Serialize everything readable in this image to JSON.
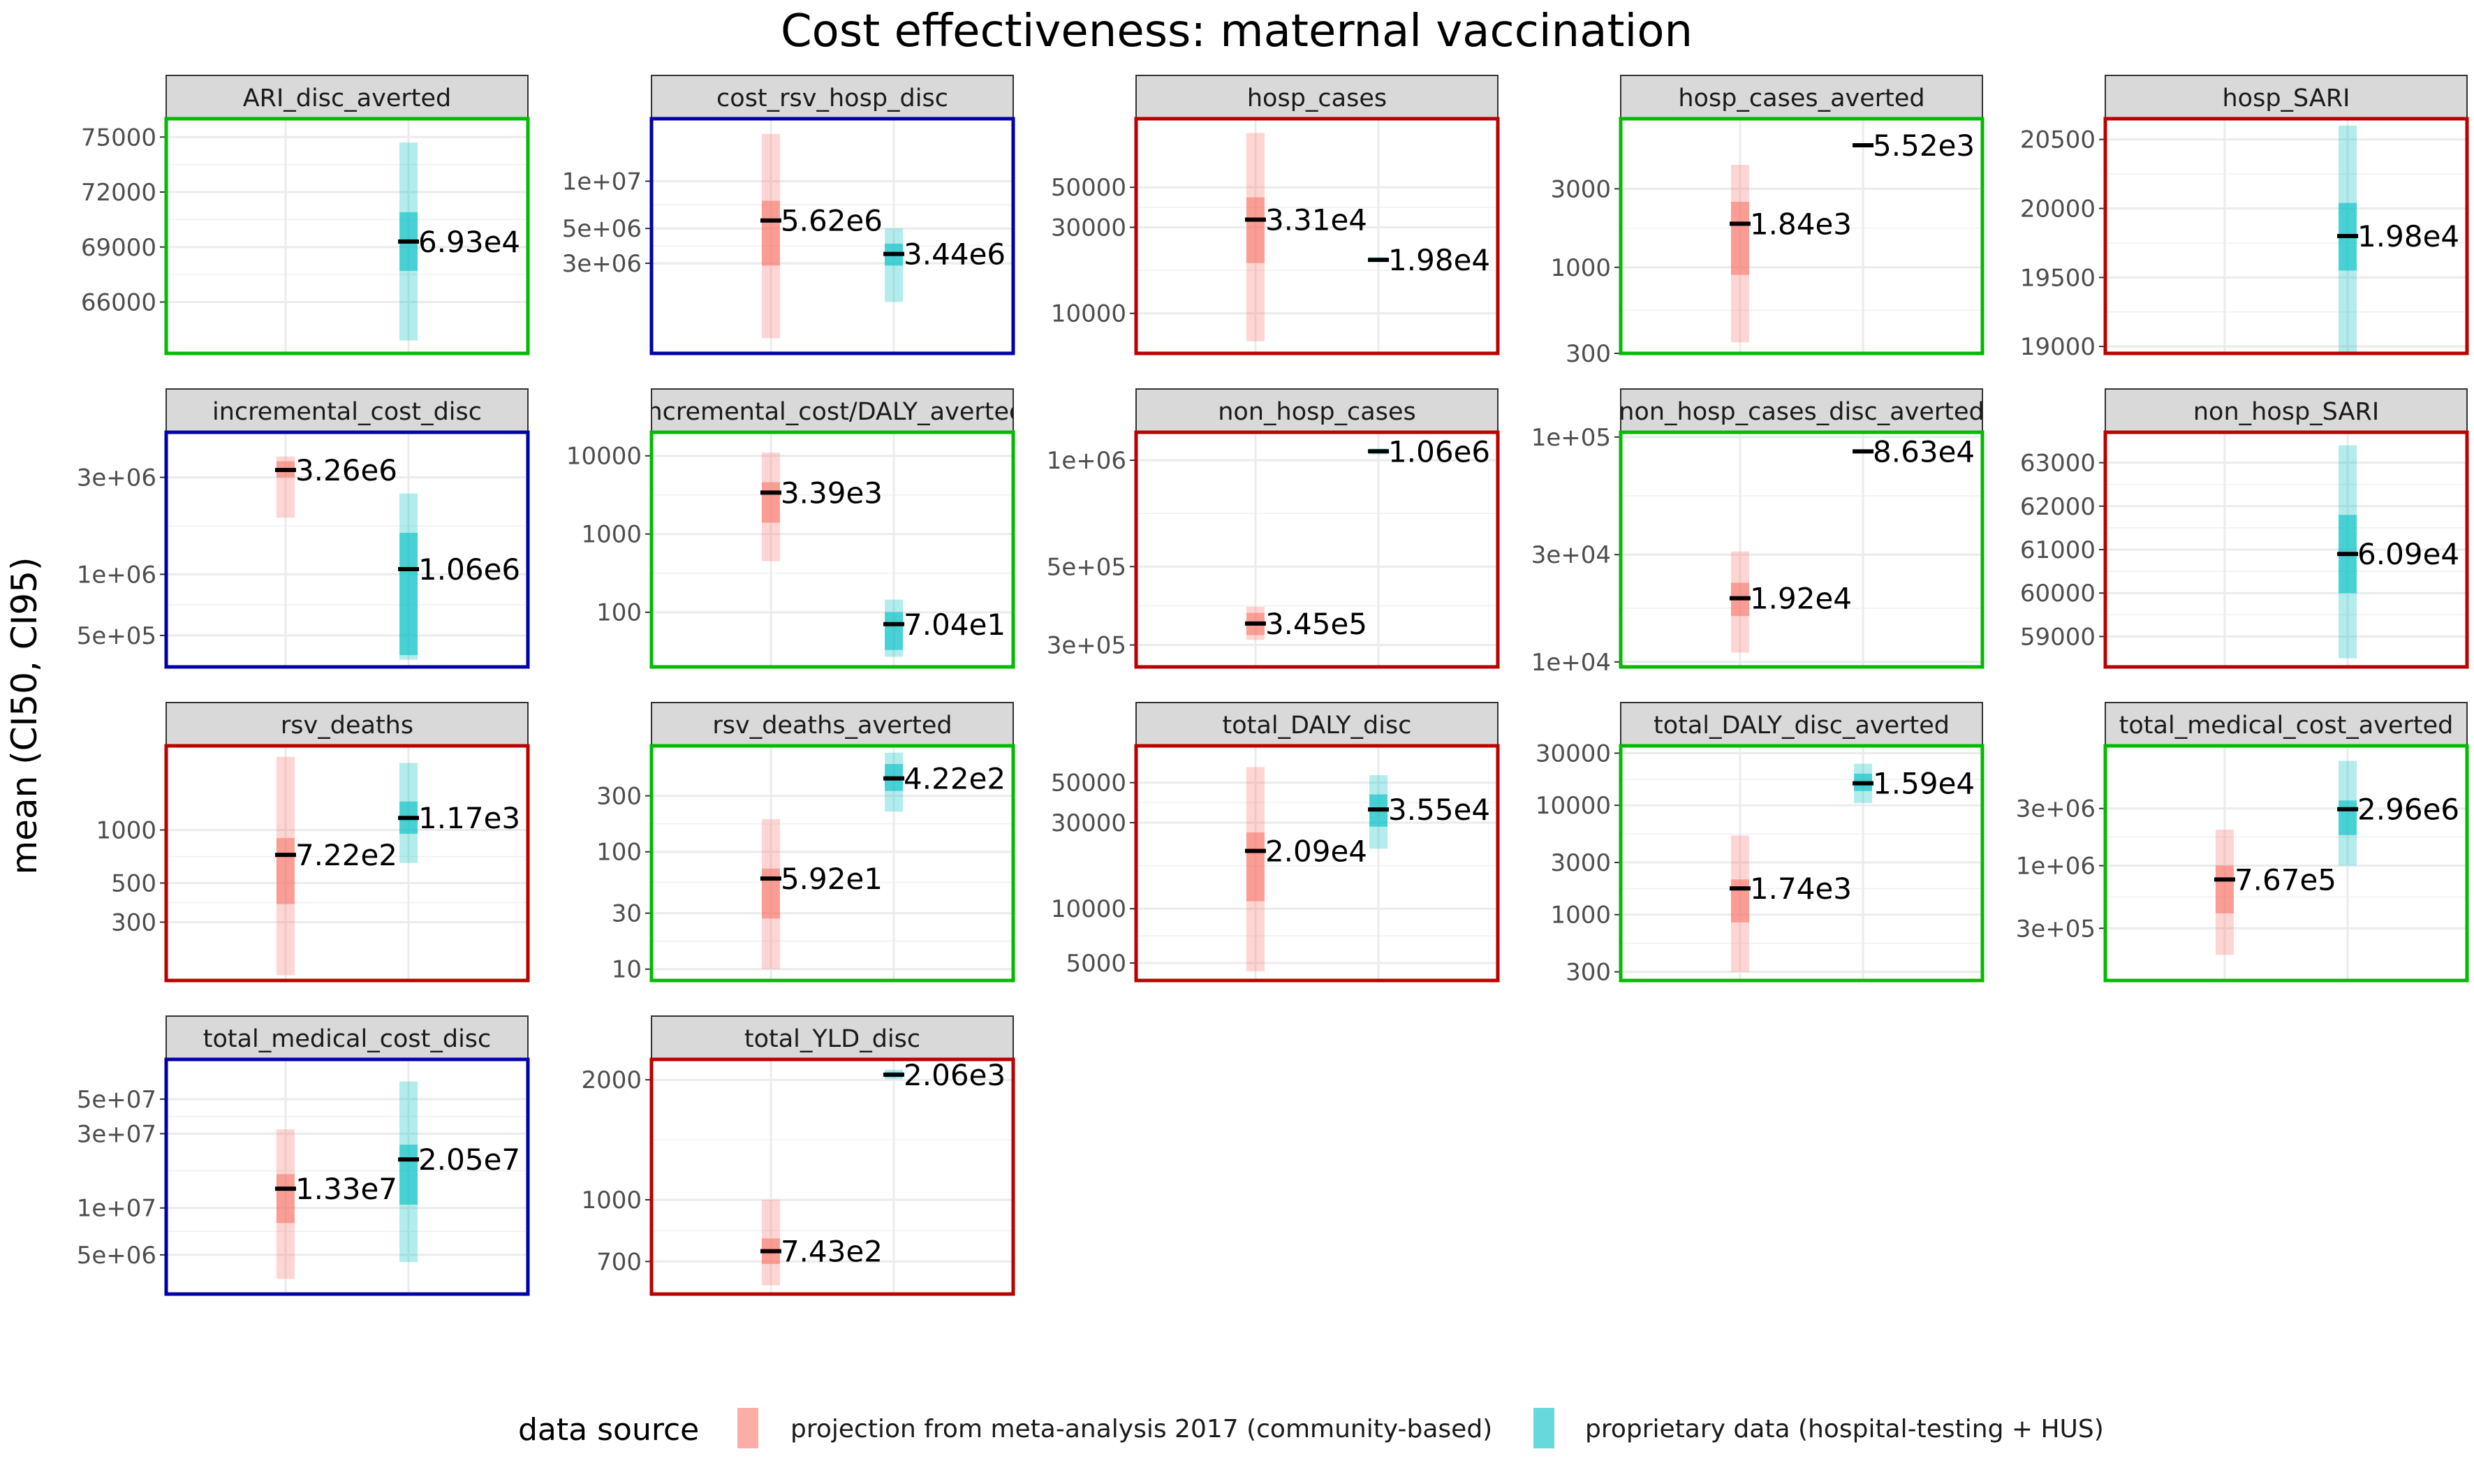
{
  "chart_data": {
    "type": "facet-interval",
    "title": "Cost effectiveness: maternal vaccination",
    "ylabel": "mean (CI50, CI95)",
    "xlabel": "",
    "legend": {
      "title": "data source",
      "position": "bottom",
      "entries": [
        {
          "name": "projection from meta-analysis 2017 (community-based)",
          "color": "#F8766D"
        },
        {
          "name": "proprietary data (hospital-testing + HUS)",
          "color": "#00BFC4"
        }
      ]
    },
    "border_colors": {
      "green": "#00BB00",
      "blue": "#0000AA",
      "red": "#BB0000"
    },
    "grid": true,
    "panels": [
      {
        "label": "ARI_disc_averted",
        "border": "green",
        "yscale": "linear",
        "ylim": [
          63200,
          76000
        ],
        "ticks": [
          {
            "v": 66000,
            "t": "66000"
          },
          {
            "v": 69000,
            "t": "69000"
          },
          {
            "v": 72000,
            "t": "72000"
          },
          {
            "v": 75000,
            "t": "75000"
          }
        ],
        "series": [
          {
            "source": 1,
            "x": 2,
            "mean": 69300,
            "ci50": [
              67700,
              70900
            ],
            "ci95": [
              63900,
              74700
            ],
            "label": "6.93e4"
          }
        ]
      },
      {
        "label": "cost_rsv_hosp_disc",
        "border": "blue",
        "yscale": "log",
        "ylim": [
          800000,
          25000000
        ],
        "ticks": [
          {
            "v": 3000000,
            "t": "3e+06"
          },
          {
            "v": 5000000,
            "t": "5e+06"
          },
          {
            "v": 10000000,
            "t": "1e+07"
          }
        ],
        "series": [
          {
            "source": 0,
            "x": 1,
            "mean": 5620000,
            "ci50": [
              2900000,
              7500000
            ],
            "ci95": [
              1000000,
              20000000
            ],
            "label": "5.62e6"
          },
          {
            "source": 1,
            "x": 2,
            "mean": 3440000,
            "ci50": [
              2900000,
              4000000
            ],
            "ci95": [
              1700000,
              5000000
            ],
            "label": "3.44e6"
          }
        ]
      },
      {
        "label": "hosp_cases",
        "border": "red",
        "yscale": "log",
        "ylim": [
          6000,
          120000
        ],
        "ticks": [
          {
            "v": 10000,
            "t": "10000"
          },
          {
            "v": 30000,
            "t": "30000"
          },
          {
            "v": 50000,
            "t": "50000"
          }
        ],
        "series": [
          {
            "source": 0,
            "x": 1,
            "mean": 33100,
            "ci50": [
              19000,
              44000
            ],
            "ci95": [
              7000,
              100000
            ],
            "label": "3.31e4"
          },
          {
            "source": 1,
            "x": 2,
            "mean": 19800,
            "ci50": [
              19500,
              20200
            ],
            "ci95": [
              19300,
              20500
            ],
            "label": "1.98e4"
          }
        ]
      },
      {
        "label": "hosp_cases_averted",
        "border": "green",
        "yscale": "log",
        "ylim": [
          300,
          8000
        ],
        "ticks": [
          {
            "v": 300,
            "t": "300"
          },
          {
            "v": 1000,
            "t": "1000"
          },
          {
            "v": 3000,
            "t": "3000"
          }
        ],
        "series": [
          {
            "source": 0,
            "x": 1,
            "mean": 1840,
            "ci50": [
              900,
              2500
            ],
            "ci95": [
              350,
              4200
            ],
            "label": "1.84e3"
          },
          {
            "source": 1,
            "x": 2,
            "mean": 5520,
            "ci50": [
              5440,
              5600
            ],
            "ci95": [
              5400,
              5640
            ],
            "label": "5.52e3"
          }
        ]
      },
      {
        "label": "hosp_SARI",
        "border": "red",
        "yscale": "linear",
        "ylim": [
          18950,
          20650
        ],
        "ticks": [
          {
            "v": 19000,
            "t": "19000"
          },
          {
            "v": 19500,
            "t": "19500"
          },
          {
            "v": 20000,
            "t": "20000"
          },
          {
            "v": 20500,
            "t": "20500"
          }
        ],
        "series": [
          {
            "source": 1,
            "x": 2,
            "mean": 19800,
            "ci50": [
              19550,
              20040
            ],
            "ci95": [
              18950,
              20600
            ],
            "label": "1.98e4"
          }
        ]
      },
      {
        "label": "incremental_cost_disc",
        "border": "blue",
        "yscale": "log",
        "ylim": [
          350000,
          5000000
        ],
        "ticks": [
          {
            "v": 500000,
            "t": "5e+05"
          },
          {
            "v": 1000000,
            "t": "1e+06"
          },
          {
            "v": 3000000,
            "t": "3e+06"
          }
        ],
        "series": [
          {
            "source": 0,
            "x": 1,
            "mean": 3260000,
            "ci50": [
              3000000,
              3600000
            ],
            "ci95": [
              1900000,
              3800000
            ],
            "label": "3.26e6"
          },
          {
            "source": 1,
            "x": 2,
            "mean": 1060000,
            "ci50": [
              400000,
              1600000
            ],
            "ci95": [
              380000,
              2500000
            ],
            "label": "1.06e6"
          }
        ]
      },
      {
        "label": "incremental_cost/DALY_averted",
        "border": "green",
        "yscale": "log",
        "ylim": [
          20,
          20000
        ],
        "ticks": [
          {
            "v": 100,
            "t": "100"
          },
          {
            "v": 1000,
            "t": "1000"
          },
          {
            "v": 10000,
            "t": "10000"
          }
        ],
        "series": [
          {
            "source": 0,
            "x": 1,
            "mean": 3390,
            "ci50": [
              1400,
              4600
            ],
            "ci95": [
              450,
              11000
            ],
            "label": "3.39e3"
          },
          {
            "source": 1,
            "x": 2,
            "mean": 70.4,
            "ci50": [
              33,
              100
            ],
            "ci95": [
              27,
              145
            ],
            "label": "7.04e1"
          }
        ]
      },
      {
        "label": "non_hosp_cases",
        "border": "red",
        "yscale": "log",
        "ylim": [
          260000,
          1200000
        ],
        "ticks": [
          {
            "v": 300000,
            "t": "3e+05"
          },
          {
            "v": 500000,
            "t": "5e+05"
          },
          {
            "v": 1000000,
            "t": "1e+06"
          }
        ],
        "series": [
          {
            "source": 0,
            "x": 1,
            "mean": 345000,
            "ci50": [
              320000,
              370000
            ],
            "ci95": [
              310000,
              385000
            ],
            "label": "3.45e5"
          },
          {
            "source": 1,
            "x": 2,
            "mean": 1060000,
            "ci50": [
              1045000,
              1075000
            ],
            "ci95": [
              1040000,
              1080000
            ],
            "label": "1.06e6"
          }
        ]
      },
      {
        "label": "non_hosp_cases_disc_averted",
        "border": "green",
        "yscale": "log",
        "ylim": [
          9500,
          105000
        ],
        "ticks": [
          {
            "v": 10000,
            "t": "1e+04"
          },
          {
            "v": 30000,
            "t": "3e+04"
          },
          {
            "v": 100000,
            "t": "1e+05"
          }
        ],
        "series": [
          {
            "source": 0,
            "x": 1,
            "mean": 19200,
            "ci50": [
              16000,
              22500
            ],
            "ci95": [
              11000,
              31000
            ],
            "label": "1.92e4"
          },
          {
            "source": 1,
            "x": 2,
            "mean": 86300,
            "ci50": [
              85000,
              87500
            ],
            "ci95": [
              84500,
              88000
            ],
            "label": "8.63e4"
          }
        ]
      },
      {
        "label": "non_hosp_SARI",
        "border": "red",
        "yscale": "linear",
        "ylim": [
          58300,
          63700
        ],
        "ticks": [
          {
            "v": 59000,
            "t": "59000"
          },
          {
            "v": 60000,
            "t": "60000"
          },
          {
            "v": 61000,
            "t": "61000"
          },
          {
            "v": 62000,
            "t": "62000"
          },
          {
            "v": 63000,
            "t": "63000"
          }
        ],
        "series": [
          {
            "source": 1,
            "x": 2,
            "mean": 60900,
            "ci50": [
              60000,
              61800
            ],
            "ci95": [
              58500,
              63400
            ],
            "label": "6.09e4"
          }
        ]
      },
      {
        "label": "rsv_deaths",
        "border": "red",
        "yscale": "log",
        "ylim": [
          140,
          3000
        ],
        "ticks": [
          {
            "v": 300,
            "t": "300"
          },
          {
            "v": 500,
            "t": "500"
          },
          {
            "v": 1000,
            "t": "1000"
          }
        ],
        "series": [
          {
            "source": 0,
            "x": 1,
            "mean": 722,
            "ci50": [
              380,
              900
            ],
            "ci95": [
              150,
              2600
            ],
            "label": "7.22e2"
          },
          {
            "source": 1,
            "x": 2,
            "mean": 1170,
            "ci50": [
              950,
              1450
            ],
            "ci95": [
              650,
              2400
            ],
            "label": "1.17e3"
          }
        ]
      },
      {
        "label": "rsv_deaths_averted",
        "border": "green",
        "yscale": "log",
        "ylim": [
          8,
          800
        ],
        "ticks": [
          {
            "v": 10,
            "t": "10"
          },
          {
            "v": 30,
            "t": "30"
          },
          {
            "v": 100,
            "t": "100"
          },
          {
            "v": 300,
            "t": "300"
          }
        ],
        "series": [
          {
            "source": 0,
            "x": 1,
            "mean": 59.2,
            "ci50": [
              27,
              72
            ],
            "ci95": [
              10,
              190
            ],
            "label": "5.92e1"
          },
          {
            "source": 1,
            "x": 2,
            "mean": 422,
            "ci50": [
              330,
              560
            ],
            "ci95": [
              220,
              700
            ],
            "label": "4.22e2"
          }
        ]
      },
      {
        "label": "total_DALY_disc",
        "border": "red",
        "yscale": "log",
        "ylim": [
          4000,
          80000
        ],
        "ticks": [
          {
            "v": 5000,
            "t": "5000"
          },
          {
            "v": 10000,
            "t": "10000"
          },
          {
            "v": 30000,
            "t": "30000"
          },
          {
            "v": 50000,
            "t": "50000"
          }
        ],
        "series": [
          {
            "source": 0,
            "x": 1,
            "mean": 20900,
            "ci50": [
              11000,
              26500
            ],
            "ci95": [
              4500,
              61000
            ],
            "label": "2.09e4"
          },
          {
            "source": 1,
            "x": 2,
            "mean": 35500,
            "ci50": [
              28500,
              43000
            ],
            "ci95": [
              21500,
              55000
            ],
            "label": "3.55e4"
          }
        ]
      },
      {
        "label": "total_DALY_disc_averted",
        "border": "green",
        "yscale": "log",
        "ylim": [
          250,
          35000
        ],
        "ticks": [
          {
            "v": 300,
            "t": "300"
          },
          {
            "v": 1000,
            "t": "1000"
          },
          {
            "v": 3000,
            "t": "3000"
          },
          {
            "v": 10000,
            "t": "10000"
          },
          {
            "v": 30000,
            "t": "30000"
          }
        ],
        "series": [
          {
            "source": 0,
            "x": 1,
            "mean": 1740,
            "ci50": [
              850,
              2100
            ],
            "ci95": [
              300,
              5300
            ],
            "label": "1.74e3"
          },
          {
            "source": 1,
            "x": 2,
            "mean": 15900,
            "ci50": [
              13500,
              19500
            ],
            "ci95": [
              10500,
              24000
            ],
            "label": "1.59e4"
          }
        ]
      },
      {
        "label": "total_medical_cost_averted",
        "border": "green",
        "yscale": "log",
        "ylim": [
          110000,
          10000000
        ],
        "ticks": [
          {
            "v": 300000,
            "t": "3e+05"
          },
          {
            "v": 1000000,
            "t": "1e+06"
          },
          {
            "v": 3000000,
            "t": "3e+06"
          }
        ],
        "series": [
          {
            "source": 0,
            "x": 1,
            "mean": 767000,
            "ci50": [
              400000,
              1000000
            ],
            "ci95": [
              180000,
              2000000
            ],
            "label": "7.67e5"
          },
          {
            "source": 1,
            "x": 2,
            "mean": 2960000,
            "ci50": [
              1800000,
              3500000
            ],
            "ci95": [
              1000000,
              7500000
            ],
            "label": "2.96e6"
          }
        ]
      },
      {
        "label": "total_medical_cost_disc",
        "border": "blue",
        "yscale": "log",
        "ylim": [
          2800000,
          90000000
        ],
        "ticks": [
          {
            "v": 5000000,
            "t": "5e+06"
          },
          {
            "v": 10000000,
            "t": "1e+07"
          },
          {
            "v": 30000000,
            "t": "3e+07"
          },
          {
            "v": 50000000,
            "t": "5e+07"
          }
        ],
        "series": [
          {
            "source": 0,
            "x": 1,
            "mean": 13300000,
            "ci50": [
              8000000,
              16500000
            ],
            "ci95": [
              3500000,
              32000000
            ],
            "label": "1.33e7"
          },
          {
            "source": 1,
            "x": 2,
            "mean": 20500000,
            "ci50": [
              10500000,
              25500000
            ],
            "ci95": [
              4500000,
              65000000
            ],
            "label": "2.05e7"
          }
        ]
      },
      {
        "label": "total_YLD_disc",
        "border": "red",
        "yscale": "log",
        "ylim": [
          580,
          2250
        ],
        "ticks": [
          {
            "v": 700,
            "t": "700"
          },
          {
            "v": 1000,
            "t": "1000"
          },
          {
            "v": 2000,
            "t": "2000"
          }
        ],
        "series": [
          {
            "source": 0,
            "x": 1,
            "mean": 743,
            "ci50": [
              690,
              800
            ],
            "ci95": [
              610,
              1000
            ],
            "label": "7.43e2"
          },
          {
            "source": 1,
            "x": 2,
            "mean": 2060,
            "ci50": [
              2030,
              2090
            ],
            "ci95": [
              2010,
              2120
            ],
            "label": "2.06e3"
          }
        ]
      }
    ]
  }
}
